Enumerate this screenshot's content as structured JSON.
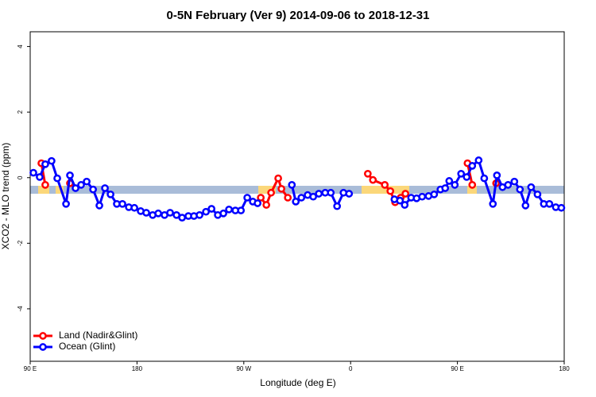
{
  "chart_data": {
    "type": "line",
    "title": "0-5N February (Ver 9)   2014-09-06 to 2018-12-31",
    "x_label": "Longitude (deg E)",
    "y_label": "XCO2 - MLO trend (ppm)",
    "xlim": [
      90,
      540
    ],
    "ylim": [
      -5.6,
      4.45
    ],
    "xticks": [
      {
        "value": 90,
        "label": "90 E"
      },
      180,
      {
        "value": 270,
        "label": "90 W"
      },
      {
        "value": 360,
        "label": "0"
      },
      {
        "value": 450,
        "label": "90 E"
      },
      {
        "value": 540,
        "label": "180"
      }
    ],
    "yticks": [
      -4,
      -2,
      0,
      2,
      4
    ],
    "legend": "bottom-left",
    "series": [
      {
        "name": "Land (Nadir&Glint)",
        "color": "#ff0000",
        "x": [
          99.4,
          102.7,
          110,
          123.5,
          200,
          284.3,
          289,
          293,
          299,
          301.7,
          307.1,
          380,
          374.5,
          378.8,
          388.8,
          393.5,
          397.5,
          402.2,
          406.2,
          430,
          458.5,
          462.5,
          470,
          482.6
        ],
        "values": [
          0.44,
          -0.22,
          null,
          -0.17,
          null,
          -0.61,
          -0.83,
          -0.46,
          -0.02,
          -0.34,
          -0.61,
          null,
          0.12,
          -0.07,
          -0.22,
          -0.41,
          -0.75,
          -0.61,
          -0.49,
          null,
          0.44,
          -0.22,
          null,
          -0.17
        ]
      },
      {
        "name": "Ocean (Glint)",
        "color": "#0000ff",
        "x": [
          92.7,
          98,
          102.7,
          108,
          112.8,
          120.2,
          123.5,
          128.2,
          132.9,
          137.6,
          143,
          148.3,
          153,
          157.7,
          163,
          167.7,
          173.1,
          177.8,
          183.1,
          187.8,
          193.2,
          197.9,
          203.2,
          207.9,
          213.3,
          218,
          223.3,
          228,
          232.7,
          238.1,
          242.8,
          248.1,
          252.8,
          257.5,
          262.9,
          267.6,
          272.9,
          277.6,
          281.6,
          300,
          310.5,
          313.8,
          318.5,
          323.8,
          328.5,
          333.2,
          338.6,
          343.3,
          348.6,
          354,
          358.7,
          380,
          396.9,
          401.6,
          405.6,
          411,
          415.6,
          420.3,
          425.7,
          430.4,
          435.7,
          439.7,
          443.1,
          447.8,
          453.1,
          457.8,
          462.5,
          467.9,
          472.6,
          479.9,
          483.3,
          488,
          492.7,
          498,
          502.7,
          507.4,
          512.1,
          517.5,
          522.8,
          527.5,
          532.9,
          537.6
        ],
        "values": [
          0.15,
          0.02,
          0.41,
          0.51,
          -0.02,
          -0.8,
          0.07,
          -0.32,
          -0.22,
          -0.12,
          -0.36,
          -0.85,
          -0.32,
          -0.51,
          -0.8,
          -0.8,
          -0.9,
          -0.92,
          -1.02,
          -1.07,
          -1.14,
          -1.09,
          -1.14,
          -1.07,
          -1.14,
          -1.22,
          -1.17,
          -1.17,
          -1.14,
          -1.04,
          -0.95,
          -1.14,
          -1.09,
          -0.97,
          -1.0,
          -1.0,
          -0.61,
          -0.73,
          -0.78,
          null,
          -0.22,
          -0.73,
          -0.61,
          -0.53,
          -0.58,
          -0.49,
          -0.46,
          -0.46,
          -0.87,
          -0.46,
          -0.49,
          null,
          -0.66,
          -0.7,
          -0.83,
          -0.61,
          -0.63,
          -0.58,
          -0.56,
          -0.51,
          -0.36,
          -0.32,
          -0.1,
          -0.22,
          0.12,
          0.02,
          0.36,
          0.53,
          -0.02,
          -0.8,
          0.07,
          -0.29,
          -0.22,
          -0.12,
          -0.36,
          -0.85,
          -0.29,
          -0.51,
          -0.8,
          -0.8,
          -0.9,
          -0.92
        ]
      }
    ]
  }
}
